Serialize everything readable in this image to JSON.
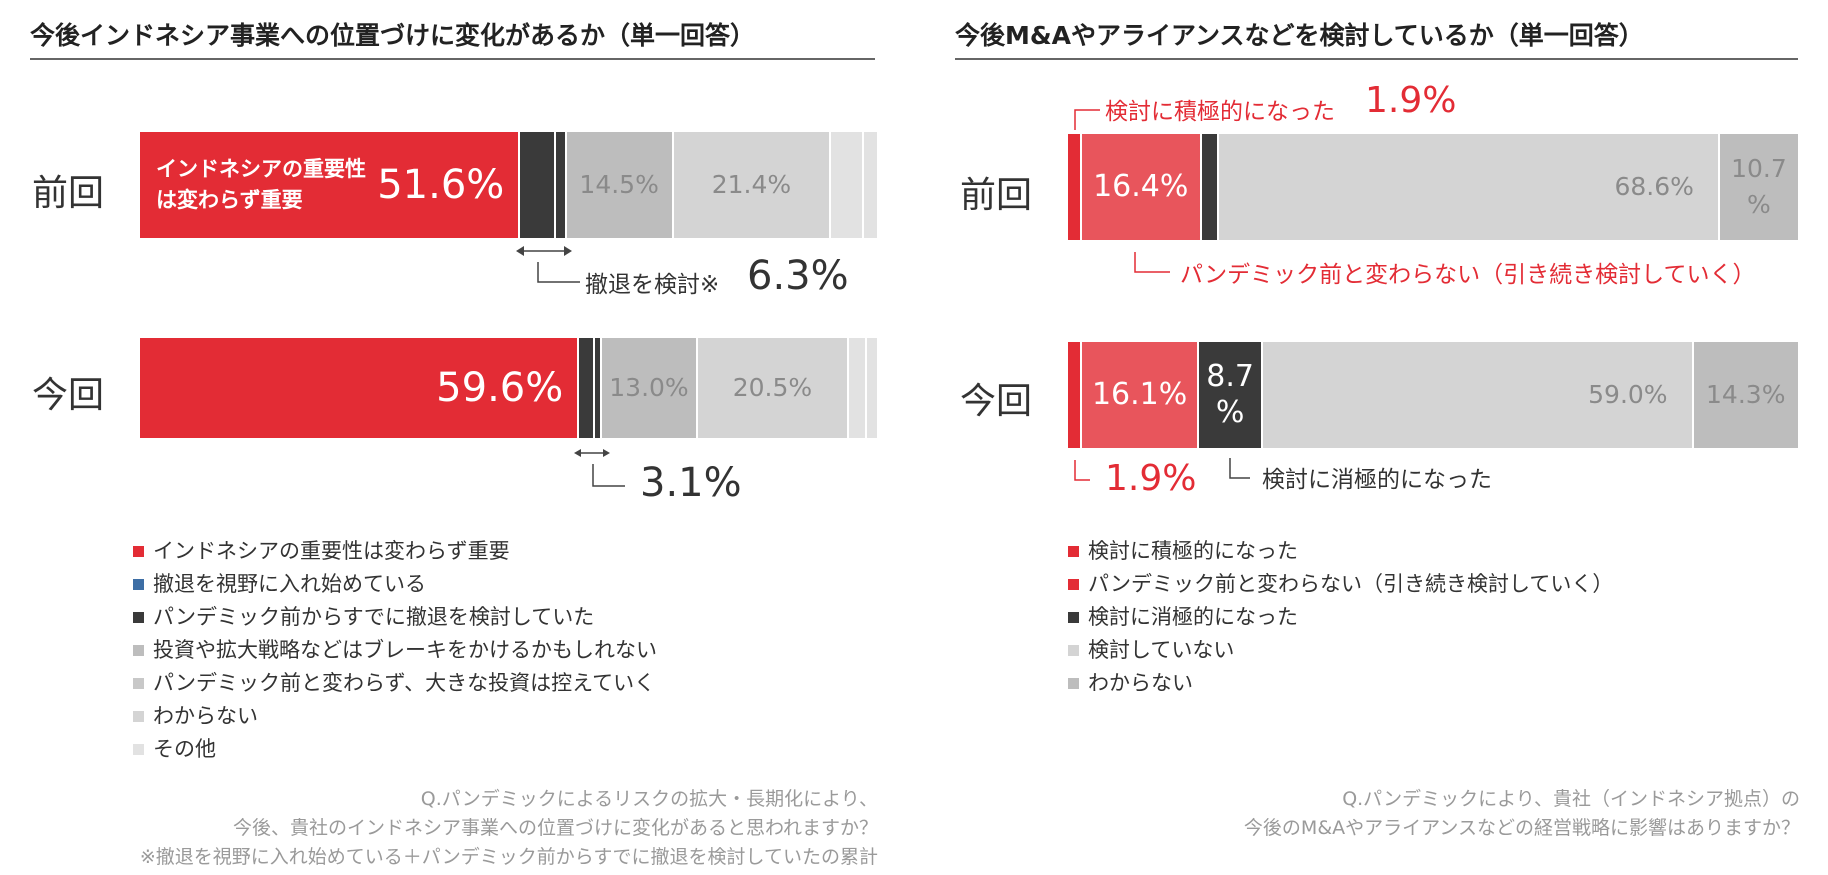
{
  "colors": {
    "red": "#e32c35",
    "red_light": "#e8555c",
    "dark": "#3a3a3a",
    "gray_mid": "#bdbdbd",
    "gray_light": "#d4d4d4",
    "gray_lighter": "#e2e2e2",
    "blue": "#3d6ea5"
  },
  "chart_data": [
    {
      "type": "bar",
      "orientation": "horizontal-stacked-100",
      "title": "今後インドネシア事業への位置づけに変化があるか（単一回答）",
      "categories": [
        "前回",
        "今回"
      ],
      "series": [
        {
          "name": "インドネシアの重要性は変わらず重要",
          "values": [
            51.6,
            59.6
          ]
        },
        {
          "name": "撤退を視野に入れ始めている",
          "values": [
            4.9,
            2.1
          ]
        },
        {
          "name": "パンデミック前からすでに撤退を検討していた",
          "values": [
            1.4,
            1.0
          ]
        },
        {
          "name": "投資や拡大戦略などはブレーキをかけるかもしれない",
          "values": [
            14.5,
            13.0
          ]
        },
        {
          "name": "パンデミック前と変わらず、大きな投資は控えていく",
          "values": [
            21.4,
            20.5
          ]
        },
        {
          "name": "わからない",
          "values": [
            4.4,
            2.5
          ]
        },
        {
          "name": "その他",
          "values": [
            1.8,
            1.3
          ]
        }
      ],
      "segment_labels": {
        "前回": [
          "51.6%",
          "",
          "",
          "14.5%",
          "21.4%",
          "",
          ""
        ],
        "今回": [
          "59.6%",
          "",
          "",
          "13.0%",
          "20.5%",
          "",
          ""
        ]
      },
      "inbar_text": "インドネシアの重要性\nは変わらず重要",
      "callouts": {
        "withdraw_label": "撤退を検討※",
        "withdraw_prev": "6.3%",
        "withdraw_now": "3.1%"
      },
      "legend": [
        "インドネシアの重要性は変わらず重要",
        "撤退を視野に入れ始めている",
        "パンデミック前からすでに撤退を検討していた",
        "投資や拡大戦略などはブレーキをかけるかもしれない",
        "パンデミック前と変わらず、大きな投資は控えていく",
        "わからない",
        "その他"
      ],
      "legend_colors": [
        "#e32c35",
        "#3d6ea5",
        "#3a3a3a",
        "#bdbdbd",
        "#c8c8c8",
        "#d4d4d4",
        "#e2e2e2"
      ],
      "notes": [
        "Q.パンデミックによるリスクの拡大・長期化により、",
        "今後、貴社のインドネシア事業への位置づけに変化があると思われますか？",
        "※撤退を視野に入れ始めている＋パンデミック前からすでに撤退を検討していたの累計"
      ]
    },
    {
      "type": "bar",
      "orientation": "horizontal-stacked-100",
      "title": "今後M&Aやアライアンスなどを検討しているか（単一回答）",
      "categories": [
        "前回",
        "今回"
      ],
      "series": [
        {
          "name": "検討に積極的になった",
          "values": [
            1.9,
            1.9
          ]
        },
        {
          "name": "パンデミック前と変わらない（引き続き検討していく）",
          "values": [
            16.4,
            16.1
          ]
        },
        {
          "name": "検討に消極的になった",
          "values": [
            2.4,
            8.7
          ]
        },
        {
          "name": "検討していない",
          "values": [
            68.6,
            59.0
          ]
        },
        {
          "name": "わからない",
          "values": [
            10.7,
            14.3
          ]
        }
      ],
      "segment_labels": {
        "前回": [
          "",
          "16.4%",
          "",
          "68.6%",
          "10.7\n%"
        ],
        "今回": [
          "",
          "16.1%",
          "8.7\n%",
          "59.0%",
          "14.3%"
        ]
      },
      "callouts": {
        "active_label": "検討に積極的になった",
        "active_prev": "1.9%",
        "same_label": "パンデミック前と変わらない（引き続き検討していく）",
        "active_now": "1.9%",
        "passive_label": "検討に消極的になった"
      },
      "legend": [
        "検討に積極的になった",
        "パンデミック前と変わらない（引き続き検討していく）",
        "検討に消極的になった",
        "検討していない",
        "わからない"
      ],
      "legend_colors": [
        "#e32c35",
        "#e32c35",
        "#3a3a3a",
        "#d4d4d4",
        "#bdbdbd"
      ],
      "notes": [
        "Q.パンデミックにより、貴社（インドネシア拠点）の",
        "今後のM&Aやアライアンスなどの経営戦略に影響はありますか？"
      ]
    }
  ]
}
